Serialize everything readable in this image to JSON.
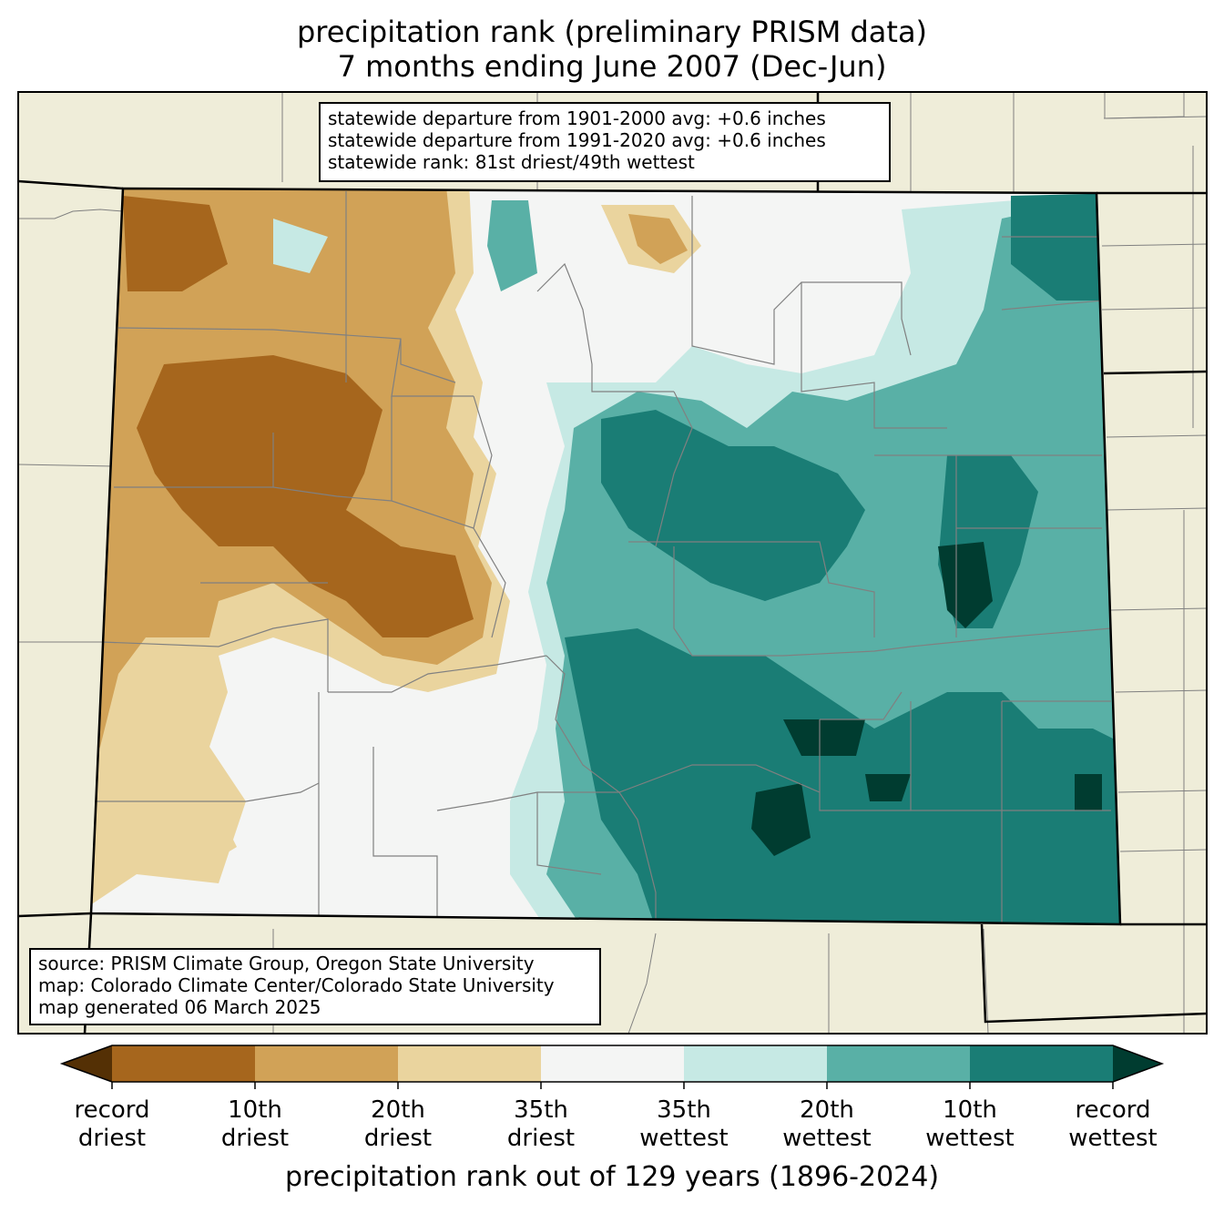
{
  "title": {
    "line1": "precipitation rank (preliminary PRISM data)",
    "line2": "7 months ending June 2007 (Dec-Jun)"
  },
  "stats": {
    "line1": "statewide departure from 1901-2000 avg: +0.6 inches",
    "line2": "statewide departure from 1991-2020 avg: +0.6 inches",
    "line3": "statewide rank: 81st driest/49th wettest"
  },
  "source": {
    "line1": "source: PRISM Climate Group, Oregon State University",
    "line2": "map: Colorado Climate Center/Colorado State University",
    "line3": "map generated 06 March 2025"
  },
  "colorbar": {
    "title": "precipitation rank out of 129 years (1896-2024)",
    "colors": [
      "#543005",
      "#a6661d",
      "#d1a257",
      "#ead49e",
      "#f4f5f4",
      "#c6e9e4",
      "#59b0a6",
      "#1a7d75",
      "#003c30"
    ],
    "ticks": [
      {
        "top": "record",
        "bottom": "driest"
      },
      {
        "top": "10th",
        "bottom": "driest"
      },
      {
        "top": "20th",
        "bottom": "driest"
      },
      {
        "top": "35th",
        "bottom": "driest"
      },
      {
        "top": "35th",
        "bottom": "wettest"
      },
      {
        "top": "20th",
        "bottom": "wettest"
      },
      {
        "top": "10th",
        "bottom": "wettest"
      },
      {
        "top": "record",
        "bottom": "wettest"
      }
    ]
  },
  "colors": {
    "land_outside": "#efedd9",
    "county_lines": "#808080",
    "state_border": "#000000"
  }
}
